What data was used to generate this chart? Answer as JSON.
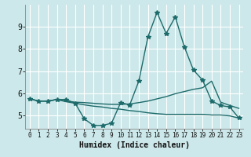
{
  "xlabel": "Humidex (Indice chaleur)",
  "bg_color": "#cde8ea",
  "grid_color": "#ffffff",
  "line_color": "#1e6b6b",
  "xlim": [
    -0.5,
    23.5
  ],
  "ylim": [
    4.4,
    10.0
  ],
  "yticks": [
    5,
    6,
    7,
    8,
    9
  ],
  "xticks": [
    0,
    1,
    2,
    3,
    4,
    5,
    6,
    7,
    8,
    9,
    10,
    11,
    12,
    13,
    14,
    15,
    16,
    17,
    18,
    19,
    20,
    21,
    22,
    23
  ],
  "line1_x": [
    0,
    1,
    2,
    3,
    4,
    5,
    6,
    7,
    8,
    9,
    10,
    11,
    12,
    13,
    14,
    15,
    16,
    17,
    18,
    19,
    20,
    21,
    22,
    23
  ],
  "line1_y": [
    5.75,
    5.65,
    5.65,
    5.72,
    5.72,
    5.55,
    4.85,
    4.55,
    4.55,
    4.65,
    5.58,
    5.48,
    6.55,
    8.55,
    9.65,
    8.7,
    9.45,
    8.1,
    7.05,
    6.6,
    5.65,
    5.45,
    5.38,
    4.88
  ],
  "line2_x": [
    0,
    1,
    2,
    3,
    4,
    5,
    6,
    7,
    8,
    9,
    10,
    11,
    12,
    13,
    14,
    15,
    16,
    17,
    18,
    19,
    20,
    21,
    22,
    23
  ],
  "line2_y": [
    5.75,
    5.65,
    5.65,
    5.72,
    5.65,
    5.6,
    5.58,
    5.55,
    5.52,
    5.5,
    5.5,
    5.52,
    5.58,
    5.65,
    5.75,
    5.85,
    5.98,
    6.08,
    6.18,
    6.25,
    6.55,
    5.6,
    5.45,
    5.32
  ],
  "line3_x": [
    0,
    1,
    2,
    3,
    4,
    5,
    6,
    7,
    8,
    9,
    10,
    11,
    12,
    13,
    14,
    15,
    16,
    17,
    18,
    19,
    20,
    21,
    22,
    23
  ],
  "line3_y": [
    5.75,
    5.65,
    5.65,
    5.72,
    5.62,
    5.55,
    5.48,
    5.42,
    5.38,
    5.32,
    5.28,
    5.22,
    5.18,
    5.12,
    5.08,
    5.05,
    5.05,
    5.05,
    5.05,
    5.05,
    5.02,
    5.02,
    4.98,
    4.88
  ]
}
